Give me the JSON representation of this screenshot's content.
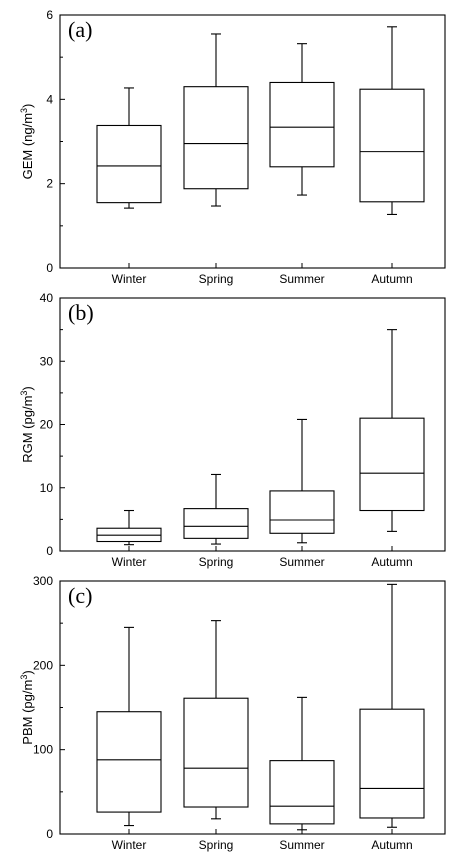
{
  "figure": {
    "panels": [
      "(a)",
      "(b)",
      "(c)"
    ]
  },
  "chart_data": [
    {
      "type": "box",
      "panel_label": "(a)",
      "ylabel": "GEM (ng/m",
      "ylabel_sup": "3",
      "ylabel_close": ")",
      "ylim": [
        0,
        6
      ],
      "yticks": [
        0,
        2,
        4,
        6
      ],
      "categories": [
        "Winter",
        "Spring",
        "Summer",
        "Autumn"
      ],
      "boxes": [
        {
          "min": 1.42,
          "q1": 1.55,
          "median": 2.42,
          "q3": 3.38,
          "max": 4.27
        },
        {
          "min": 1.47,
          "q1": 1.88,
          "median": 2.95,
          "q3": 4.3,
          "max": 5.55
        },
        {
          "min": 1.73,
          "q1": 2.4,
          "median": 3.34,
          "q3": 4.4,
          "max": 5.32
        },
        {
          "min": 1.27,
          "q1": 1.57,
          "median": 2.76,
          "q3": 4.24,
          "max": 5.72
        }
      ]
    },
    {
      "type": "box",
      "panel_label": "(b)",
      "ylabel": "RGM (pg/m",
      "ylabel_sup": "3",
      "ylabel_close": ")",
      "ylim": [
        0,
        40
      ],
      "yticks": [
        0,
        10,
        20,
        30,
        40
      ],
      "categories": [
        "Winter",
        "Spring",
        "Summer",
        "Autumn"
      ],
      "boxes": [
        {
          "min": 1.0,
          "q1": 1.5,
          "median": 2.5,
          "q3": 3.6,
          "max": 6.4
        },
        {
          "min": 1.1,
          "q1": 2.0,
          "median": 3.9,
          "q3": 6.7,
          "max": 12.1
        },
        {
          "min": 1.3,
          "q1": 2.8,
          "median": 4.9,
          "q3": 9.5,
          "max": 20.8
        },
        {
          "min": 3.1,
          "q1": 6.4,
          "median": 12.3,
          "q3": 21.0,
          "max": 35.0
        }
      ]
    },
    {
      "type": "box",
      "panel_label": "(c)",
      "ylabel": "PBM (pg/m",
      "ylabel_sup": "3",
      "ylabel_close": ")",
      "ylim": [
        0,
        300
      ],
      "yticks": [
        0,
        100,
        200,
        300
      ],
      "categories": [
        "Winter",
        "Spring",
        "Summer",
        "Autumn"
      ],
      "boxes": [
        {
          "min": 10,
          "q1": 26,
          "median": 88,
          "q3": 145,
          "max": 245
        },
        {
          "min": 18,
          "q1": 32,
          "median": 78,
          "q3": 161,
          "max": 253
        },
        {
          "min": 5,
          "q1": 12,
          "median": 33,
          "q3": 87,
          "max": 162
        },
        {
          "min": 8,
          "q1": 19,
          "median": 54,
          "q3": 148,
          "max": 296
        }
      ]
    }
  ]
}
